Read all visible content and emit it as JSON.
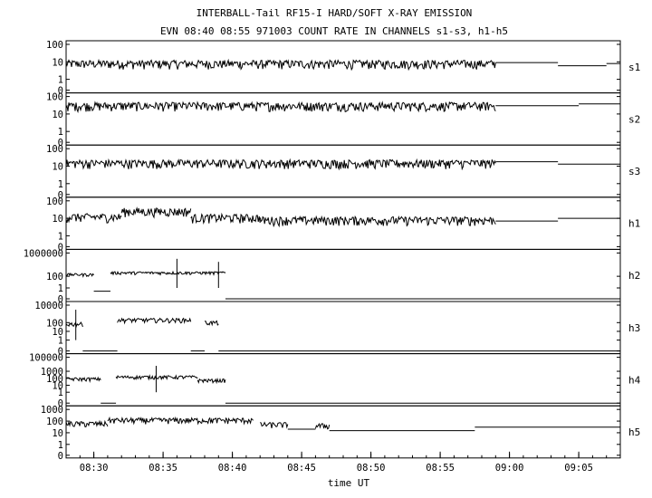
{
  "chart_data": {
    "type": "line",
    "title": "INTERBALL-Tail RF15-I HARD/SOFT X-RAY EMISSION",
    "subtitle": "EVN 08:40 08:55 971003  COUNT RATE IN CHANNELS s1-s3, h1-h5",
    "xlabel": "time UT",
    "x_ticks": [
      "08:30",
      "08:35",
      "08:40",
      "08:45",
      "08:50",
      "08:55",
      "09:00",
      "09:05"
    ],
    "xlim": [
      "08:28",
      "09:08"
    ],
    "yscale": "log",
    "grid": false,
    "panels": [
      {
        "name": "s1",
        "y_ticks": [
          "100",
          "10",
          "1",
          "0"
        ],
        "ylim": [
          0,
          100
        ]
      },
      {
        "name": "s2",
        "y_ticks": [
          "100",
          "10",
          "1",
          "0"
        ],
        "ylim": [
          0,
          100
        ]
      },
      {
        "name": "s3",
        "y_ticks": [
          "100",
          "10",
          "1",
          "0"
        ],
        "ylim": [
          0,
          100
        ]
      },
      {
        "name": "h1",
        "y_ticks": [
          "100",
          "10",
          "1",
          "0"
        ],
        "ylim": [
          0,
          100
        ]
      },
      {
        "name": "h2",
        "y_ticks": [
          "1000000",
          "100",
          "1",
          "0"
        ],
        "ylim": [
          0,
          1000000
        ]
      },
      {
        "name": "h3",
        "y_ticks": [
          "10000",
          "100",
          "10",
          "1",
          "0"
        ],
        "ylim": [
          0,
          10000
        ]
      },
      {
        "name": "h4",
        "y_ticks": [
          "100000",
          "1000",
          "100",
          "10",
          "1",
          "0"
        ],
        "ylim": [
          0,
          100000
        ]
      },
      {
        "name": "h5",
        "y_ticks": [
          "1000",
          "100",
          "10",
          "1",
          "0"
        ],
        "ylim": [
          0,
          1000
        ]
      }
    ],
    "series": [
      {
        "panel": "s1",
        "noisy": [
          [
            "08:28",
            "08:59",
            8
          ]
        ],
        "steps": [
          [
            "08:59",
            "09:03.5",
            9
          ],
          [
            "09:03.5",
            "09:07",
            6
          ],
          [
            "09:07",
            "09:08",
            8
          ]
        ],
        "spikes": []
      },
      {
        "panel": "s2",
        "noisy": [
          [
            "08:28",
            "08:59",
            30
          ]
        ],
        "steps": [
          [
            "08:59",
            "09:05",
            30
          ],
          [
            "09:05",
            "09:08",
            38
          ]
        ],
        "spikes": []
      },
      {
        "panel": "s3",
        "noisy": [
          [
            "08:28",
            "08:59",
            15
          ]
        ],
        "steps": [
          [
            "08:59",
            "09:03.5",
            18
          ],
          [
            "09:03.5",
            "09:08",
            13
          ]
        ],
        "spikes": []
      },
      {
        "panel": "h1",
        "noisy": [
          [
            "08:28",
            "08:32",
            12
          ],
          [
            "08:32",
            "08:37",
            25
          ],
          [
            "08:37",
            "08:42",
            11
          ],
          [
            "08:42",
            "08:59",
            8
          ]
        ],
        "steps": [
          [
            "08:59",
            "09:03.5",
            7
          ],
          [
            "09:03.5",
            "09:08",
            10
          ]
        ],
        "spikes": []
      },
      {
        "panel": "h2",
        "noisy": [
          [
            "08:28",
            "08:30",
            200
          ],
          [
            "08:31.2",
            "08:39.5",
            400
          ]
        ],
        "steps": [
          [
            "08:30",
            "08:31.2",
            0.7
          ],
          [
            "08:39.5",
            "09:08",
            0
          ]
        ],
        "spikes": [
          [
            "08:36",
            100000
          ],
          [
            "08:39",
            30000
          ]
        ]
      },
      {
        "panel": "h3",
        "noisy": [
          [
            "08:28",
            "08:29.2",
            70
          ],
          [
            "08:31.7",
            "08:37",
            200
          ],
          [
            "08:38",
            "08:39",
            100
          ]
        ],
        "steps": [
          [
            "08:29.2",
            "08:31.7",
            0
          ],
          [
            "08:37",
            "08:38",
            0
          ],
          [
            "08:39",
            "09:08",
            0
          ]
        ],
        "spikes": [
          [
            "08:28.7",
            3000
          ]
        ]
      },
      {
        "panel": "h4",
        "noisy": [
          [
            "08:28",
            "08:30.5",
            80
          ],
          [
            "08:31.6",
            "08:37.5",
            150
          ],
          [
            "08:37.5",
            "08:39.5",
            50
          ]
        ],
        "steps": [
          [
            "08:30.5",
            "08:31.6",
            0
          ],
          [
            "08:39.5",
            "09:08",
            0
          ]
        ],
        "spikes": [
          [
            "08:34.5",
            6000
          ]
        ]
      },
      {
        "panel": "h5",
        "noisy": [
          [
            "08:28",
            "08:31",
            60
          ],
          [
            "08:31",
            "08:41.5",
            120
          ],
          [
            "08:42",
            "08:44",
            50
          ],
          [
            "08:46",
            "08:47",
            40
          ]
        ],
        "steps": [
          [
            "08:44",
            "08:46",
            20
          ],
          [
            "08:47",
            "08:57.5",
            15
          ],
          [
            "08:57.5",
            "09:08",
            30
          ]
        ],
        "spikes": []
      }
    ]
  }
}
